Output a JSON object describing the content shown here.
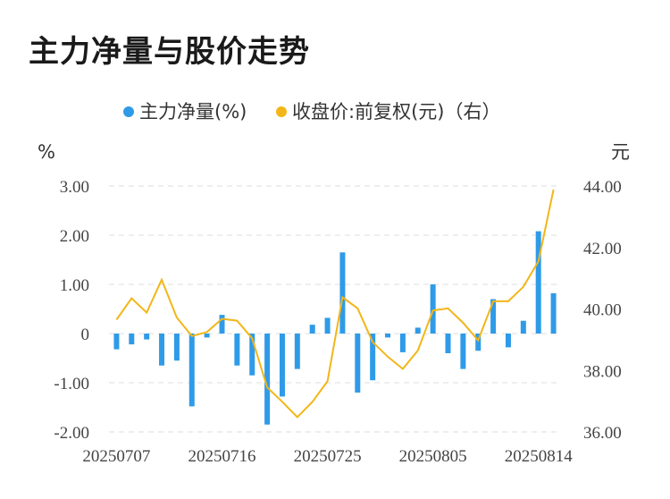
{
  "title": "主力净量与股价走势",
  "chart_data": {
    "type": "bar+line",
    "legend": [
      {
        "name": "主力净量(%)",
        "color": "#2f9be8"
      },
      {
        "name": "收盘价:前复权(元)（右）",
        "color": "#f2b619"
      }
    ],
    "left_axis": {
      "unit": "%",
      "ticks": [
        "3.00",
        "2.00",
        "1.00",
        "0",
        "-1.00",
        "-2.00"
      ],
      "range": [
        -2,
        3
      ]
    },
    "right_axis": {
      "unit": "元",
      "ticks": [
        "44.00",
        "42.00",
        "40.00",
        "38.00",
        "36.00"
      ],
      "range": [
        36,
        44
      ]
    },
    "x_tick_labels": [
      "20250707",
      "20250716",
      "20250725",
      "20250805",
      "20250814"
    ],
    "x_tick_index": [
      0,
      7,
      14,
      21,
      28
    ],
    "bar_values": [
      -0.32,
      -0.22,
      -0.12,
      -0.65,
      -0.55,
      -1.48,
      -0.08,
      0.38,
      -0.65,
      -0.85,
      -1.85,
      -1.28,
      -0.72,
      0.18,
      0.32,
      1.65,
      -1.2,
      -0.95,
      -0.08,
      -0.38,
      0.12,
      1.0,
      -0.4,
      -0.72,
      -0.35,
      0.7,
      -0.28,
      0.26,
      2.08,
      0.82
    ],
    "line_values": [
      39.65,
      40.35,
      39.88,
      40.95,
      39.72,
      39.12,
      39.25,
      39.68,
      39.62,
      39.05,
      37.45,
      36.98,
      36.48,
      36.98,
      37.65,
      40.38,
      40.02,
      38.92,
      38.45,
      38.05,
      38.65,
      39.95,
      40.02,
      39.55,
      38.98,
      40.25,
      40.25,
      40.72,
      41.55,
      43.88
    ]
  }
}
